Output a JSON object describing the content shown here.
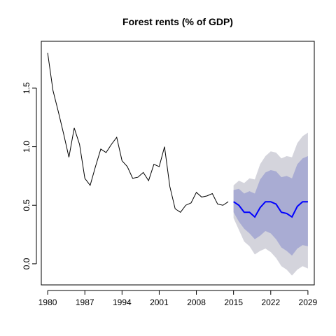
{
  "chart_data": {
    "type": "line",
    "title": "Forest rents (% of GDP)",
    "xlabel": "",
    "ylabel": "",
    "xlim": [
      1978.8,
      2030.2
    ],
    "ylim": [
      -0.18,
      1.9
    ],
    "x_ticks": [
      1980,
      1987,
      1994,
      2001,
      2008,
      2015,
      2022,
      2029
    ],
    "y_ticks": [
      0.0,
      0.5,
      1.0,
      1.5
    ],
    "colors": {
      "observed": "#000000",
      "forecast": "#0000ff",
      "band_80": "#a9acd3",
      "band_95": "#d4d4dc"
    },
    "observed": {
      "x": [
        1980,
        1981,
        1982,
        1983,
        1984,
        1985,
        1986,
        1987,
        1988,
        1989,
        1990,
        1991,
        1992,
        1993,
        1994,
        1995,
        1996,
        1997,
        1998,
        1999,
        2000,
        2001,
        2002,
        2003,
        2004,
        2005,
        2006,
        2007,
        2008,
        2009,
        2010,
        2011,
        2012,
        2013,
        2014
      ],
      "y": [
        1.8,
        1.48,
        1.3,
        1.11,
        0.91,
        1.16,
        1.02,
        0.73,
        0.67,
        0.83,
        0.98,
        0.95,
        1.02,
        1.08,
        0.88,
        0.83,
        0.73,
        0.74,
        0.78,
        0.71,
        0.85,
        0.83,
        1.0,
        0.66,
        0.47,
        0.44,
        0.5,
        0.52,
        0.61,
        0.57,
        0.58,
        0.6,
        0.51,
        0.5,
        0.53
      ]
    },
    "forecast": {
      "x": [
        2015,
        2016,
        2017,
        2018,
        2019,
        2020,
        2021,
        2022,
        2023,
        2024,
        2025,
        2026,
        2027,
        2028,
        2029
      ],
      "mean": [
        0.53,
        0.5,
        0.44,
        0.44,
        0.4,
        0.48,
        0.53,
        0.53,
        0.51,
        0.44,
        0.43,
        0.4,
        0.49,
        0.53,
        0.53
      ],
      "lo80": [
        0.44,
        0.36,
        0.3,
        0.26,
        0.21,
        0.24,
        0.28,
        0.26,
        0.21,
        0.14,
        0.11,
        0.07,
        0.13,
        0.16,
        0.15
      ],
      "hi80": [
        0.63,
        0.64,
        0.6,
        0.62,
        0.6,
        0.72,
        0.78,
        0.8,
        0.79,
        0.74,
        0.75,
        0.73,
        0.85,
        0.9,
        0.92
      ],
      "lo95": [
        0.39,
        0.29,
        0.19,
        0.15,
        0.08,
        0.11,
        0.13,
        0.1,
        0.05,
        -0.02,
        -0.05,
        -0.1,
        -0.05,
        -0.02,
        -0.04
      ],
      "hi95": [
        0.67,
        0.71,
        0.69,
        0.73,
        0.72,
        0.85,
        0.92,
        0.96,
        0.95,
        0.9,
        0.92,
        0.91,
        1.03,
        1.09,
        1.12
      ]
    }
  }
}
